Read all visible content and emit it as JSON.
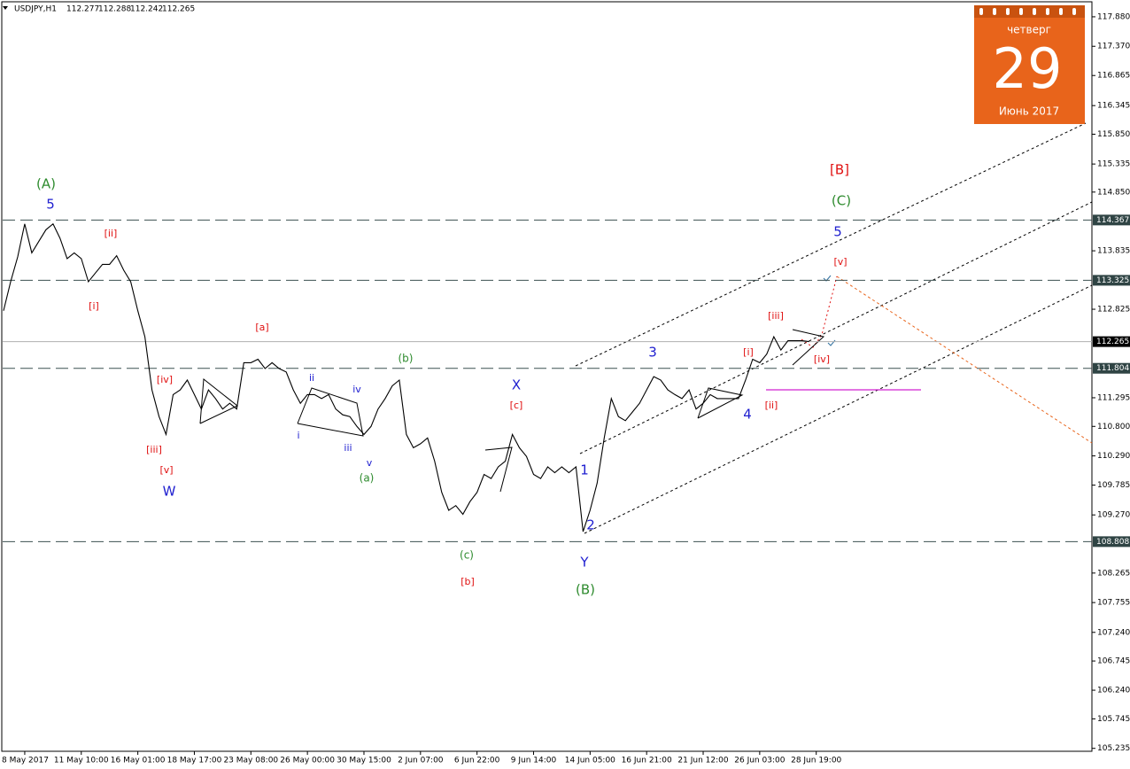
{
  "chart_data": {
    "type": "line",
    "title": "USDJPY,H1",
    "ohlc": [
      112.277,
      112.288,
      112.242,
      112.265
    ],
    "categories": [
      null,
      null,
      null,
      "8 May 2017",
      null,
      null,
      null,
      null,
      null,
      null,
      null,
      "11 May 10:00",
      null,
      null,
      null,
      null,
      null,
      null,
      null,
      "16 May 01:00",
      null,
      null,
      null,
      null,
      null,
      null,
      null,
      "18 May 17:00",
      null,
      null,
      null,
      null,
      null,
      null,
      null,
      "23 May 08:00",
      null,
      null,
      null,
      null,
      null,
      null,
      null,
      "26 May 00:00",
      null,
      null,
      null,
      null,
      null,
      null,
      null,
      "30 May 15:00",
      null,
      null,
      null,
      null,
      null,
      null,
      null,
      "2 Jun 07:00",
      null,
      null,
      null,
      null,
      null,
      null,
      null,
      "6 Jun 22:00",
      null,
      null,
      null,
      null,
      null,
      null,
      null,
      "9 Jun 14:00",
      null,
      null,
      null,
      null,
      null,
      null,
      null,
      "14 Jun 05:00",
      null,
      null,
      null,
      null,
      null,
      null,
      null,
      "16 Jun 21:00",
      null,
      null,
      null,
      null,
      null,
      null,
      null,
      "21 Jun 12:00",
      null,
      null,
      null,
      null,
      null,
      null,
      null,
      "26 Jun 03:00",
      null,
      null,
      null,
      null,
      null,
      null,
      null,
      "28 Jun 19:00"
    ],
    "values": [
      112.8,
      113.3,
      113.73,
      114.3,
      113.8,
      114.0,
      114.2,
      114.3,
      114.05,
      113.7,
      113.8,
      113.7,
      113.3,
      113.45,
      113.6,
      113.6,
      113.75,
      113.5,
      113.3,
      112.8,
      112.35,
      111.43,
      110.97,
      110.66,
      111.35,
      111.43,
      111.6,
      111.35,
      111.1,
      111.43,
      111.28,
      111.1,
      111.2,
      111.1,
      111.9,
      111.9,
      111.96,
      111.8,
      111.9,
      111.8,
      111.74,
      111.43,
      111.2,
      111.35,
      111.35,
      111.28,
      111.35,
      111.1,
      111.0,
      110.97,
      110.8,
      110.66,
      110.8,
      111.1,
      111.28,
      111.5,
      111.6,
      110.66,
      110.43,
      110.5,
      110.6,
      110.2,
      109.66,
      109.35,
      109.43,
      109.28,
      109.5,
      109.66,
      109.97,
      109.9,
      110.1,
      110.2,
      110.66,
      110.43,
      110.28,
      109.97,
      109.9,
      110.1,
      110.0,
      110.1,
      110.0,
      110.1,
      108.98,
      109.35,
      109.82,
      110.6,
      111.28,
      110.97,
      110.9,
      111.05,
      111.2,
      111.43,
      111.66,
      111.6,
      111.43,
      111.35,
      111.28,
      111.43,
      111.1,
      111.2,
      111.35,
      111.28,
      111.28,
      111.28,
      111.28,
      111.6,
      111.96,
      111.9,
      112.05,
      112.35,
      112.12,
      112.28,
      112.28,
      112.28,
      112.265,
      null
    ],
    "color": "#000000",
    "ylim": [
      104.97,
      118.17
    ],
    "yticks": [
      {
        "value": 117.88,
        "label": "117.880"
      },
      {
        "value": 117.37,
        "label": "117.370"
      },
      116.865,
      116.345,
      {
        "value": 115.85,
        "label": "115.850"
      },
      115.335,
      {
        "value": 114.85,
        "label": "114.850"
      },
      113.835,
      112.825,
      111.295,
      {
        "value": 110.8,
        "label": "110.800"
      },
      {
        "value": 110.29,
        "label": "110.290"
      },
      109.785,
      {
        "value": 109.27,
        "label": "109.270"
      },
      108.265,
      107.755,
      {
        "value": 107.24,
        "label": "107.240"
      },
      106.745,
      {
        "value": 106.24,
        "label": "106.240"
      },
      105.745,
      105.235
    ],
    "levels": [
      114.367,
      113.325,
      111.804,
      108.808
    ],
    "current_price": 112.265,
    "annotations": [
      {
        "text": "(A)",
        "color": "#2e8b2e"
      },
      {
        "text": "5",
        "color": "#2020d0"
      },
      {
        "text": "[ii]",
        "color": "#e01010"
      },
      {
        "text": "[i]",
        "color": "#e01010"
      },
      {
        "text": "[a]",
        "color": "#e01010"
      },
      {
        "text": "[iv]",
        "color": "#e01010"
      },
      {
        "text": "[iii]",
        "color": "#e01010"
      },
      {
        "text": "[v]",
        "color": "#e01010"
      },
      {
        "text": "W",
        "color": "#2020d0"
      },
      {
        "text": "ii",
        "color": "#2020d0"
      },
      {
        "text": "iv",
        "color": "#2020d0"
      },
      {
        "text": "i",
        "color": "#2020d0"
      },
      {
        "text": "iii",
        "color": "#2020d0"
      },
      {
        "text": "v",
        "color": "#2020d0"
      },
      {
        "text": "(a)",
        "color": "#2e8b2e"
      },
      {
        "text": "(b)",
        "color": "#2e8b2e"
      },
      {
        "text": "X",
        "color": "#2020d0"
      },
      {
        "text": "[c]",
        "color": "#e01010"
      },
      {
        "text": "(c)",
        "color": "#2e8b2e"
      },
      {
        "text": "[b]",
        "color": "#e01010"
      },
      {
        "text": "1",
        "color": "#2020d0"
      },
      {
        "text": "2",
        "color": "#2020d0"
      },
      {
        "text": "Y",
        "color": "#2020d0"
      },
      {
        "text": "(B)",
        "color": "#2e8b2e"
      },
      {
        "text": "3",
        "color": "#2020d0"
      },
      {
        "text": "[i]",
        "color": "#e01010"
      },
      {
        "text": "4",
        "color": "#2020d0"
      },
      {
        "text": "[ii]",
        "color": "#e01010"
      },
      {
        "text": "[iii]",
        "color": "#e01010"
      },
      {
        "text": "[iv]",
        "color": "#e01010"
      },
      {
        "text": "[v]",
        "color": "#e01010"
      },
      {
        "text": "5",
        "color": "#2020d0"
      },
      {
        "text": "(C)",
        "color": "#2e8b2e"
      },
      {
        "text": "[B]",
        "color": "#e01010"
      }
    ],
    "calendar": {
      "weekday": "четверг",
      "day": "29",
      "month": "Июнь 2017"
    }
  }
}
